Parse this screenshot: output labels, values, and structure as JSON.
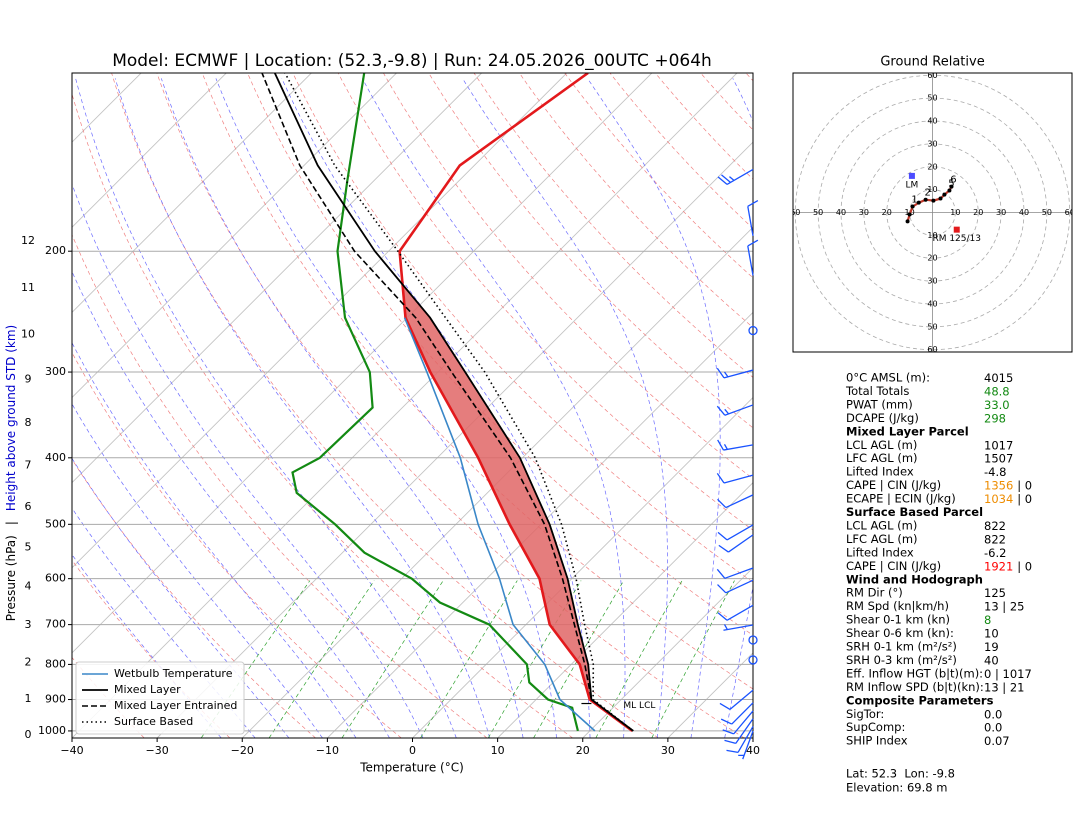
{
  "chart_data": {
    "type": "skewt",
    "title": "Model: ECMWF | Location: (52.3,-9.8) | Run: 24.05.2026_00UTC +064h",
    "xlabel": "Temperature (°C)",
    "ylabel": "Pressure (hPa)",
    "ylabel_separator": "|",
    "y2label": "Height above ground STD (km)",
    "xlim": [
      -40,
      40
    ],
    "xticks": [
      {
        "value": -40,
        "label": "−40"
      },
      {
        "value": -30,
        "label": "−30"
      },
      {
        "value": -20,
        "label": "−20"
      },
      {
        "value": -10,
        "label": "−10"
      },
      0,
      10,
      20,
      30,
      40
    ],
    "ylim": [
      1024,
      110
    ],
    "log_y": true,
    "yticks": [
      1000,
      900,
      800,
      700,
      600,
      500,
      400,
      300,
      200
    ],
    "y2ticks": [
      0,
      1,
      2,
      3,
      4,
      5,
      6,
      7,
      8,
      9,
      10,
      11,
      12
    ],
    "y2color": "#0000cc",
    "grid": true,
    "legend": "lower left",
    "cape_fill": "#e06666",
    "series": [
      {
        "color": "#e3191c",
        "dash": "solid",
        "width": 2.6,
        "pressure": [
          1000,
          900,
          800,
          700,
          600,
          500,
          400,
          300,
          250,
          200,
          150,
          110
        ],
        "values": [
          25,
          16.3,
          11.0,
          2.8,
          -3.8,
          -13.7,
          -25.2,
          -40.9,
          -50.2,
          -58.7,
          -61.7,
          -57.5
        ]
      },
      {
        "color": "#138a13",
        "dash": "solid",
        "width": 2.2,
        "pressure": [
          1000,
          925,
          900,
          850,
          800,
          700,
          650,
          600,
          550,
          500,
          450,
          420,
          400,
          338,
          300,
          250,
          200,
          158,
          110
        ],
        "values": [
          18.6,
          15.2,
          11.4,
          7.2,
          4.8,
          -4.3,
          -12.7,
          -18.8,
          -27.4,
          -34.2,
          -42.4,
          -45.3,
          -43.8,
          -43.5,
          -48,
          -57.3,
          -66,
          -73.1,
          -83.8
        ]
      },
      {
        "name": "Wetbulb Temperature",
        "color": "#3a87c8",
        "dash": "solid",
        "width": 1.6,
        "pressure": [
          1000,
          900,
          800,
          700,
          600,
          500,
          400,
          300,
          250
        ],
        "values": [
          20.6,
          12.8,
          6.9,
          -1.5,
          -8.5,
          -17.4,
          -27.3,
          -41.3,
          -50.3
        ]
      },
      {
        "name": "Mixed Layer",
        "color": "#000000",
        "dash": "solid",
        "width": 1.8,
        "pressure": [
          1000,
          900,
          800,
          700,
          600,
          500,
          400,
          300,
          250,
          200,
          150,
          110
        ],
        "values": [
          25.1,
          16.5,
          12.0,
          6.1,
          -0.5,
          -9,
          -20.3,
          -36.8,
          -47.3,
          -61.6,
          -78.4,
          -94.3
        ]
      },
      {
        "name": "Mixed Layer Entrained",
        "color": "#000000",
        "dash": "dashed",
        "width": 1.6,
        "pressure": [
          1000,
          900,
          800,
          700,
          600,
          500,
          400,
          300,
          250,
          200,
          150,
          110
        ],
        "values": [
          25.1,
          16.5,
          11.6,
          5.7,
          -1.1,
          -9.6,
          -21.4,
          -38.4,
          -49,
          -64,
          -80.5,
          -95.8
        ]
      },
      {
        "name": "Surface Based",
        "color": "#000000",
        "dash": "dotted",
        "width": 1.6,
        "pressure": [
          1000,
          900,
          800,
          700,
          600,
          500,
          400,
          300,
          250,
          200,
          150,
          110
        ],
        "values": [
          25.1,
          16.7,
          12.6,
          6.9,
          0.5,
          -7.6,
          -18.5,
          -34.5,
          -45.5,
          -58.9,
          -76.4,
          -93.1
        ]
      }
    ],
    "annotations": [
      {
        "text": "ML LCL",
        "pressure": 900
      }
    ],
    "wind": {
      "color": "#1a53ff",
      "pressure": [
        152,
        190,
        217,
        261,
        298,
        335,
        383,
        424,
        453,
        501,
        518,
        579,
        603,
        656,
        701,
        737,
        788,
        872,
        910,
        935,
        960,
        985,
        1000
      ],
      "speed": [
        25,
        10,
        10,
        0,
        15,
        15,
        15,
        10,
        10,
        10,
        10,
        10,
        10,
        10,
        5,
        0,
        0,
        10,
        10,
        10,
        10,
        10,
        5
      ],
      "direction": [
        240,
        350,
        350,
        0,
        255,
        250,
        260,
        255,
        245,
        240,
        235,
        250,
        245,
        240,
        260,
        0,
        0,
        230,
        225,
        220,
        215,
        210,
        200
      ]
    },
    "hodograph": {
      "title": "Ground Relative",
      "lim": [
        -61,
        61
      ],
      "rings": [
        10,
        20,
        30,
        40,
        50,
        60
      ],
      "color": "#c0392b",
      "u": [
        -10.9,
        -10,
        -8.7,
        -6,
        -3,
        0.4,
        3.5,
        5.2,
        7.4,
        8.3
      ],
      "v": [
        -3.9,
        -0.9,
        2.6,
        4.3,
        5.6,
        5.2,
        6.1,
        7.8,
        9.6,
        11.3
      ],
      "labels": [
        null,
        null,
        "1",
        null,
        "2",
        null,
        null,
        null,
        "5",
        "6"
      ],
      "storm_motion": [
        {
          "name": "LM",
          "u": -9,
          "v": 16,
          "color": "#4c4cff"
        },
        {
          "name": "RM 125/13",
          "u": 10.6,
          "v": -7.5,
          "color": "#e31a1c"
        }
      ]
    }
  },
  "panel": {
    "rows": [
      {
        "label": "0°C AMSL (m):",
        "value": "4015"
      },
      {
        "label": "Total Totals",
        "value": "48.8",
        "color": "#138a13"
      },
      {
        "label": "PWAT (mm)",
        "value": "33.0",
        "color": "#138a13"
      },
      {
        "label": "DCAPE (J/kg)",
        "value": "298",
        "color": "#138a13"
      }
    ],
    "sections": [
      {
        "title": "Mixed Layer Parcel",
        "rows": [
          {
            "label": "LCL AGL (m)",
            "value": "1017"
          },
          {
            "label": "LFC AGL (m)",
            "value": "1507"
          },
          {
            "label": "Lifted Index",
            "value": "-4.8"
          },
          {
            "label": "CAPE | CIN (J/kg)",
            "value": "1356",
            "color": "#ee8c00",
            "suffix": "| 0"
          },
          {
            "label": "ECAPE | ECIN (J/kg)",
            "value": "1034",
            "color": "#ee8c00",
            "suffix": "| 0"
          }
        ]
      },
      {
        "title": "Surface Based Parcel",
        "rows": [
          {
            "label": "LCL AGL (m)",
            "value": "822"
          },
          {
            "label": "LFC AGL (m)",
            "value": "822"
          },
          {
            "label": "Lifted Index",
            "value": "-6.2"
          },
          {
            "label": "CAPE | CIN (J/kg)",
            "value": "1921",
            "color": "#ff0000",
            "suffix": "| 0"
          }
        ]
      },
      {
        "title": "Wind and Hodograph",
        "rows": [
          {
            "label": "RM Dir (°)",
            "value": "125"
          },
          {
            "label": "RM Spd (kn|km/h)",
            "value": "13 | 25"
          },
          {
            "label": "Shear 0-1 km (kn)",
            "value": "8",
            "color": "#138a13"
          },
          {
            "label": "Shear 0-6 km (kn):",
            "value": "10"
          },
          {
            "label": "SRH 0-1 km (m²/s²)",
            "value": "19"
          },
          {
            "label": "SRH 0-3 km (m²/s²)",
            "value": "40"
          },
          {
            "label": "Eff. Inflow HGT (b|t)(m):",
            "value": "0 | 1017"
          },
          {
            "label": "RM Inflow SPD (b|t)(kn):",
            "value": "13 | 21"
          }
        ]
      },
      {
        "title": "Composite Parameters",
        "rows": [
          {
            "label": "SigTor:",
            "value": "0.0"
          },
          {
            "label": "SupComp:",
            "value": "0.0"
          },
          {
            "label": "SHIP Index",
            "value": "0.07"
          }
        ]
      }
    ],
    "footer": [
      "Lat: 52.3  Lon: -9.8",
      "Elevation: 69.8 m"
    ]
  }
}
